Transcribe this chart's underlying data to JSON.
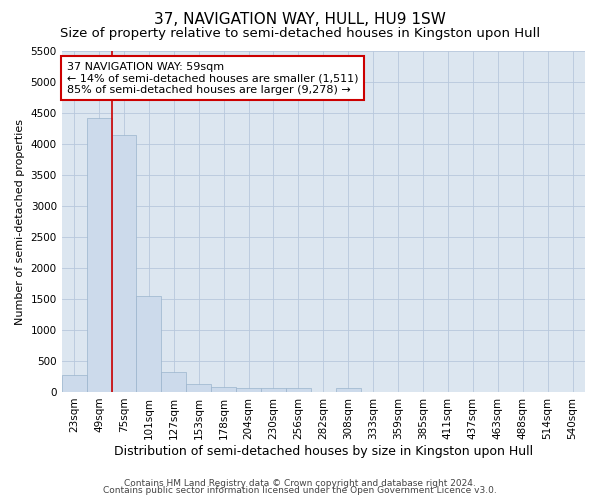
{
  "title": "37, NAVIGATION WAY, HULL, HU9 1SW",
  "subtitle": "Size of property relative to semi-detached houses in Kingston upon Hull",
  "xlabel": "Distribution of semi-detached houses by size in Kingston upon Hull",
  "ylabel": "Number of semi-detached properties",
  "footer1": "Contains HM Land Registry data © Crown copyright and database right 2024.",
  "footer2": "Contains public sector information licensed under the Open Government Licence v3.0.",
  "annotation_title": "37 NAVIGATION WAY: 59sqm",
  "annotation_line1": "← 14% of semi-detached houses are smaller (1,511)",
  "annotation_line2": "85% of semi-detached houses are larger (9,278) →",
  "vline_x": 1.5,
  "bar_color": "#ccdaeb",
  "bar_edge_color": "#9ab4cc",
  "vline_color": "#cc0000",
  "annotation_box_edgecolor": "#cc0000",
  "categories": [
    "23sqm",
    "49sqm",
    "75sqm",
    "101sqm",
    "127sqm",
    "153sqm",
    "178sqm",
    "204sqm",
    "230sqm",
    "256sqm",
    "282sqm",
    "308sqm",
    "333sqm",
    "359sqm",
    "385sqm",
    "411sqm",
    "437sqm",
    "463sqm",
    "488sqm",
    "514sqm",
    "540sqm"
  ],
  "values": [
    280,
    4420,
    4150,
    1550,
    320,
    130,
    80,
    70,
    65,
    60,
    0,
    60,
    0,
    0,
    0,
    0,
    0,
    0,
    0,
    0,
    0
  ],
  "ylim": [
    0,
    5500
  ],
  "yticks": [
    0,
    500,
    1000,
    1500,
    2000,
    2500,
    3000,
    3500,
    4000,
    4500,
    5000,
    5500
  ],
  "background_color": "#ffffff",
  "plot_bg_color": "#dce6f0",
  "grid_color": "#b8c8dc",
  "title_fontsize": 11,
  "subtitle_fontsize": 9.5,
  "xlabel_fontsize": 9,
  "ylabel_fontsize": 8,
  "tick_fontsize": 7.5,
  "annotation_fontsize": 8,
  "footer_fontsize": 6.5
}
